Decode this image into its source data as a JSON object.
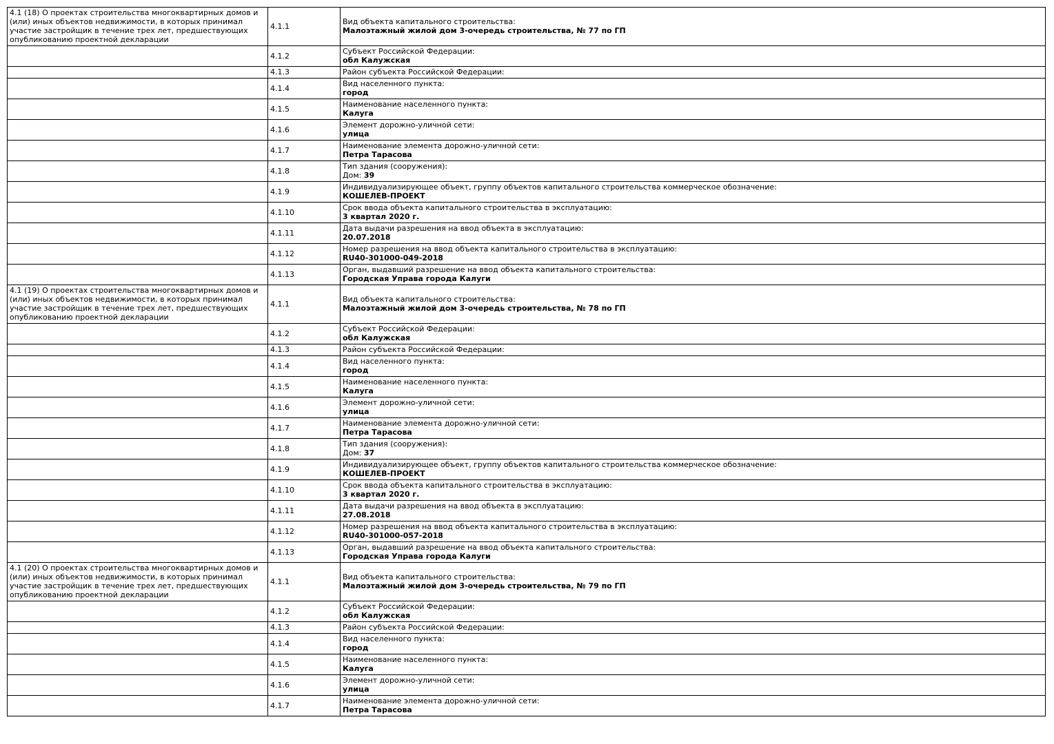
{
  "colors": {
    "background": "#ffffff",
    "text": "#000000",
    "border": "#000000"
  },
  "table": {
    "sections": [
      {
        "description": "4.1 (18) О проектах строительства многоквартирных домов и (или) иных объектов недвижимости, в которых принимал участие застройщик в течение трех лет, предшествующих опубликованию проектной декларации",
        "rows": [
          {
            "num": "4.1.1",
            "label": "Вид объекта капитального строительства:",
            "value": "Малоэтажный жилой дом 3-очередь строительства, № 77 по ГП"
          },
          {
            "num": "4.1.2",
            "label": "Субъект Российской Федерации:",
            "value": "обл Калужская"
          },
          {
            "num": "4.1.3",
            "label": "Район субъекта Российской Федерации:",
            "value": ""
          },
          {
            "num": "4.1.4",
            "label": "Вид населенного пункта:",
            "value": "город"
          },
          {
            "num": "4.1.5",
            "label": "Наименование населенного пункта:",
            "value": "Калуга"
          },
          {
            "num": "4.1.6",
            "label": "Элемент дорожно-уличной сети:",
            "value": "улица"
          },
          {
            "num": "4.1.7",
            "label": "Наименование элемента дорожно-уличной сети:",
            "value": "Петра Тарасова"
          },
          {
            "num": "4.1.8",
            "label": "Тип здания (сооружения):",
            "value_prefix": "Дом: ",
            "value": "39"
          },
          {
            "num": "4.1.9",
            "label": "Индивидуализирующее объект, группу объектов капитального строительства коммерческое обозначение:",
            "value": "КОШЕЛЕВ-ПРОЕКТ"
          },
          {
            "num": "4.1.10",
            "label": "Срок ввода объекта капитального строительства в эксплуатацию:",
            "value": "3 квартал 2020 г."
          },
          {
            "num": "4.1.11",
            "label": "Дата выдачи разрешения на ввод объекта в эксплуатацию:",
            "value": "20.07.2018"
          },
          {
            "num": "4.1.12",
            "label": "Номер разрешения на ввод объекта капитального строительства в эксплуатацию:",
            "value": "RU40-301000-049-2018"
          },
          {
            "num": "4.1.13",
            "label": "Орган, выдавший разрешение на ввод объекта капитального строительства:",
            "value": "Городская Управа города Калуги"
          }
        ]
      },
      {
        "description": "4.1 (19) О проектах строительства многоквартирных домов и (или) иных объектов недвижимости, в которых принимал участие застройщик в течение трех лет, предшествующих опубликованию проектной декларации",
        "rows": [
          {
            "num": "4.1.1",
            "label": "Вид объекта капитального строительства:",
            "value": "Малоэтажный жилой дом 3-очередь строительства, № 78 по ГП"
          },
          {
            "num": "4.1.2",
            "label": "Субъект Российской Федерации:",
            "value": "обл Калужская"
          },
          {
            "num": "4.1.3",
            "label": "Район субъекта Российской Федерации:",
            "value": ""
          },
          {
            "num": "4.1.4",
            "label": "Вид населенного пункта:",
            "value": "город"
          },
          {
            "num": "4.1.5",
            "label": "Наименование населенного пункта:",
            "value": "Калуга"
          },
          {
            "num": "4.1.6",
            "label": "Элемент дорожно-уличной сети:",
            "value": "улица"
          },
          {
            "num": "4.1.7",
            "label": "Наименование элемента дорожно-уличной сети:",
            "value": "Петра Тарасова"
          },
          {
            "num": "4.1.8",
            "label": "Тип здания (сооружения):",
            "value_prefix": "Дом: ",
            "value": "37"
          },
          {
            "num": "4.1.9",
            "label": "Индивидуализирующее объект, группу объектов капитального строительства коммерческое обозначение:",
            "value": "КОШЕЛЕВ-ПРОЕКТ"
          },
          {
            "num": "4.1.10",
            "label": "Срок ввода объекта капитального строительства в эксплуатацию:",
            "value": "3 квартал 2020 г."
          },
          {
            "num": "4.1.11",
            "label": "Дата выдачи разрешения на ввод объекта в эксплуатацию:",
            "value": "27.08.2018"
          },
          {
            "num": "4.1.12",
            "label": "Номер разрешения на ввод объекта капитального строительства в эксплуатацию:",
            "value": "RU40-301000-057-2018"
          },
          {
            "num": "4.1.13",
            "label": "Орган, выдавший разрешение на ввод объекта капитального строительства:",
            "value": "Городская Управа города Калуги"
          }
        ]
      },
      {
        "description": "4.1 (20) О проектах строительства многоквартирных домов и (или) иных объектов недвижимости, в которых принимал участие застройщик в течение трех лет, предшествующих опубликованию проектной декларации",
        "rows": [
          {
            "num": "4.1.1",
            "label": "Вид объекта капитального строительства:",
            "value": "Малоэтажный жилой дом 3-очередь строительства, № 79 по ГП"
          },
          {
            "num": "4.1.2",
            "label": "Субъект Российской Федерации:",
            "value": "обл Калужская"
          },
          {
            "num": "4.1.3",
            "label": "Район субъекта Российской Федерации:",
            "value": ""
          },
          {
            "num": "4.1.4",
            "label": "Вид населенного пункта:",
            "value": "город"
          },
          {
            "num": "4.1.5",
            "label": "Наименование населенного пункта:",
            "value": "Калуга"
          },
          {
            "num": "4.1.6",
            "label": "Элемент дорожно-уличной сети:",
            "value": "улица"
          },
          {
            "num": "4.1.7",
            "label": "Наименование элемента дорожно-уличной сети:",
            "value": "Петра Тарасова"
          }
        ]
      }
    ]
  }
}
